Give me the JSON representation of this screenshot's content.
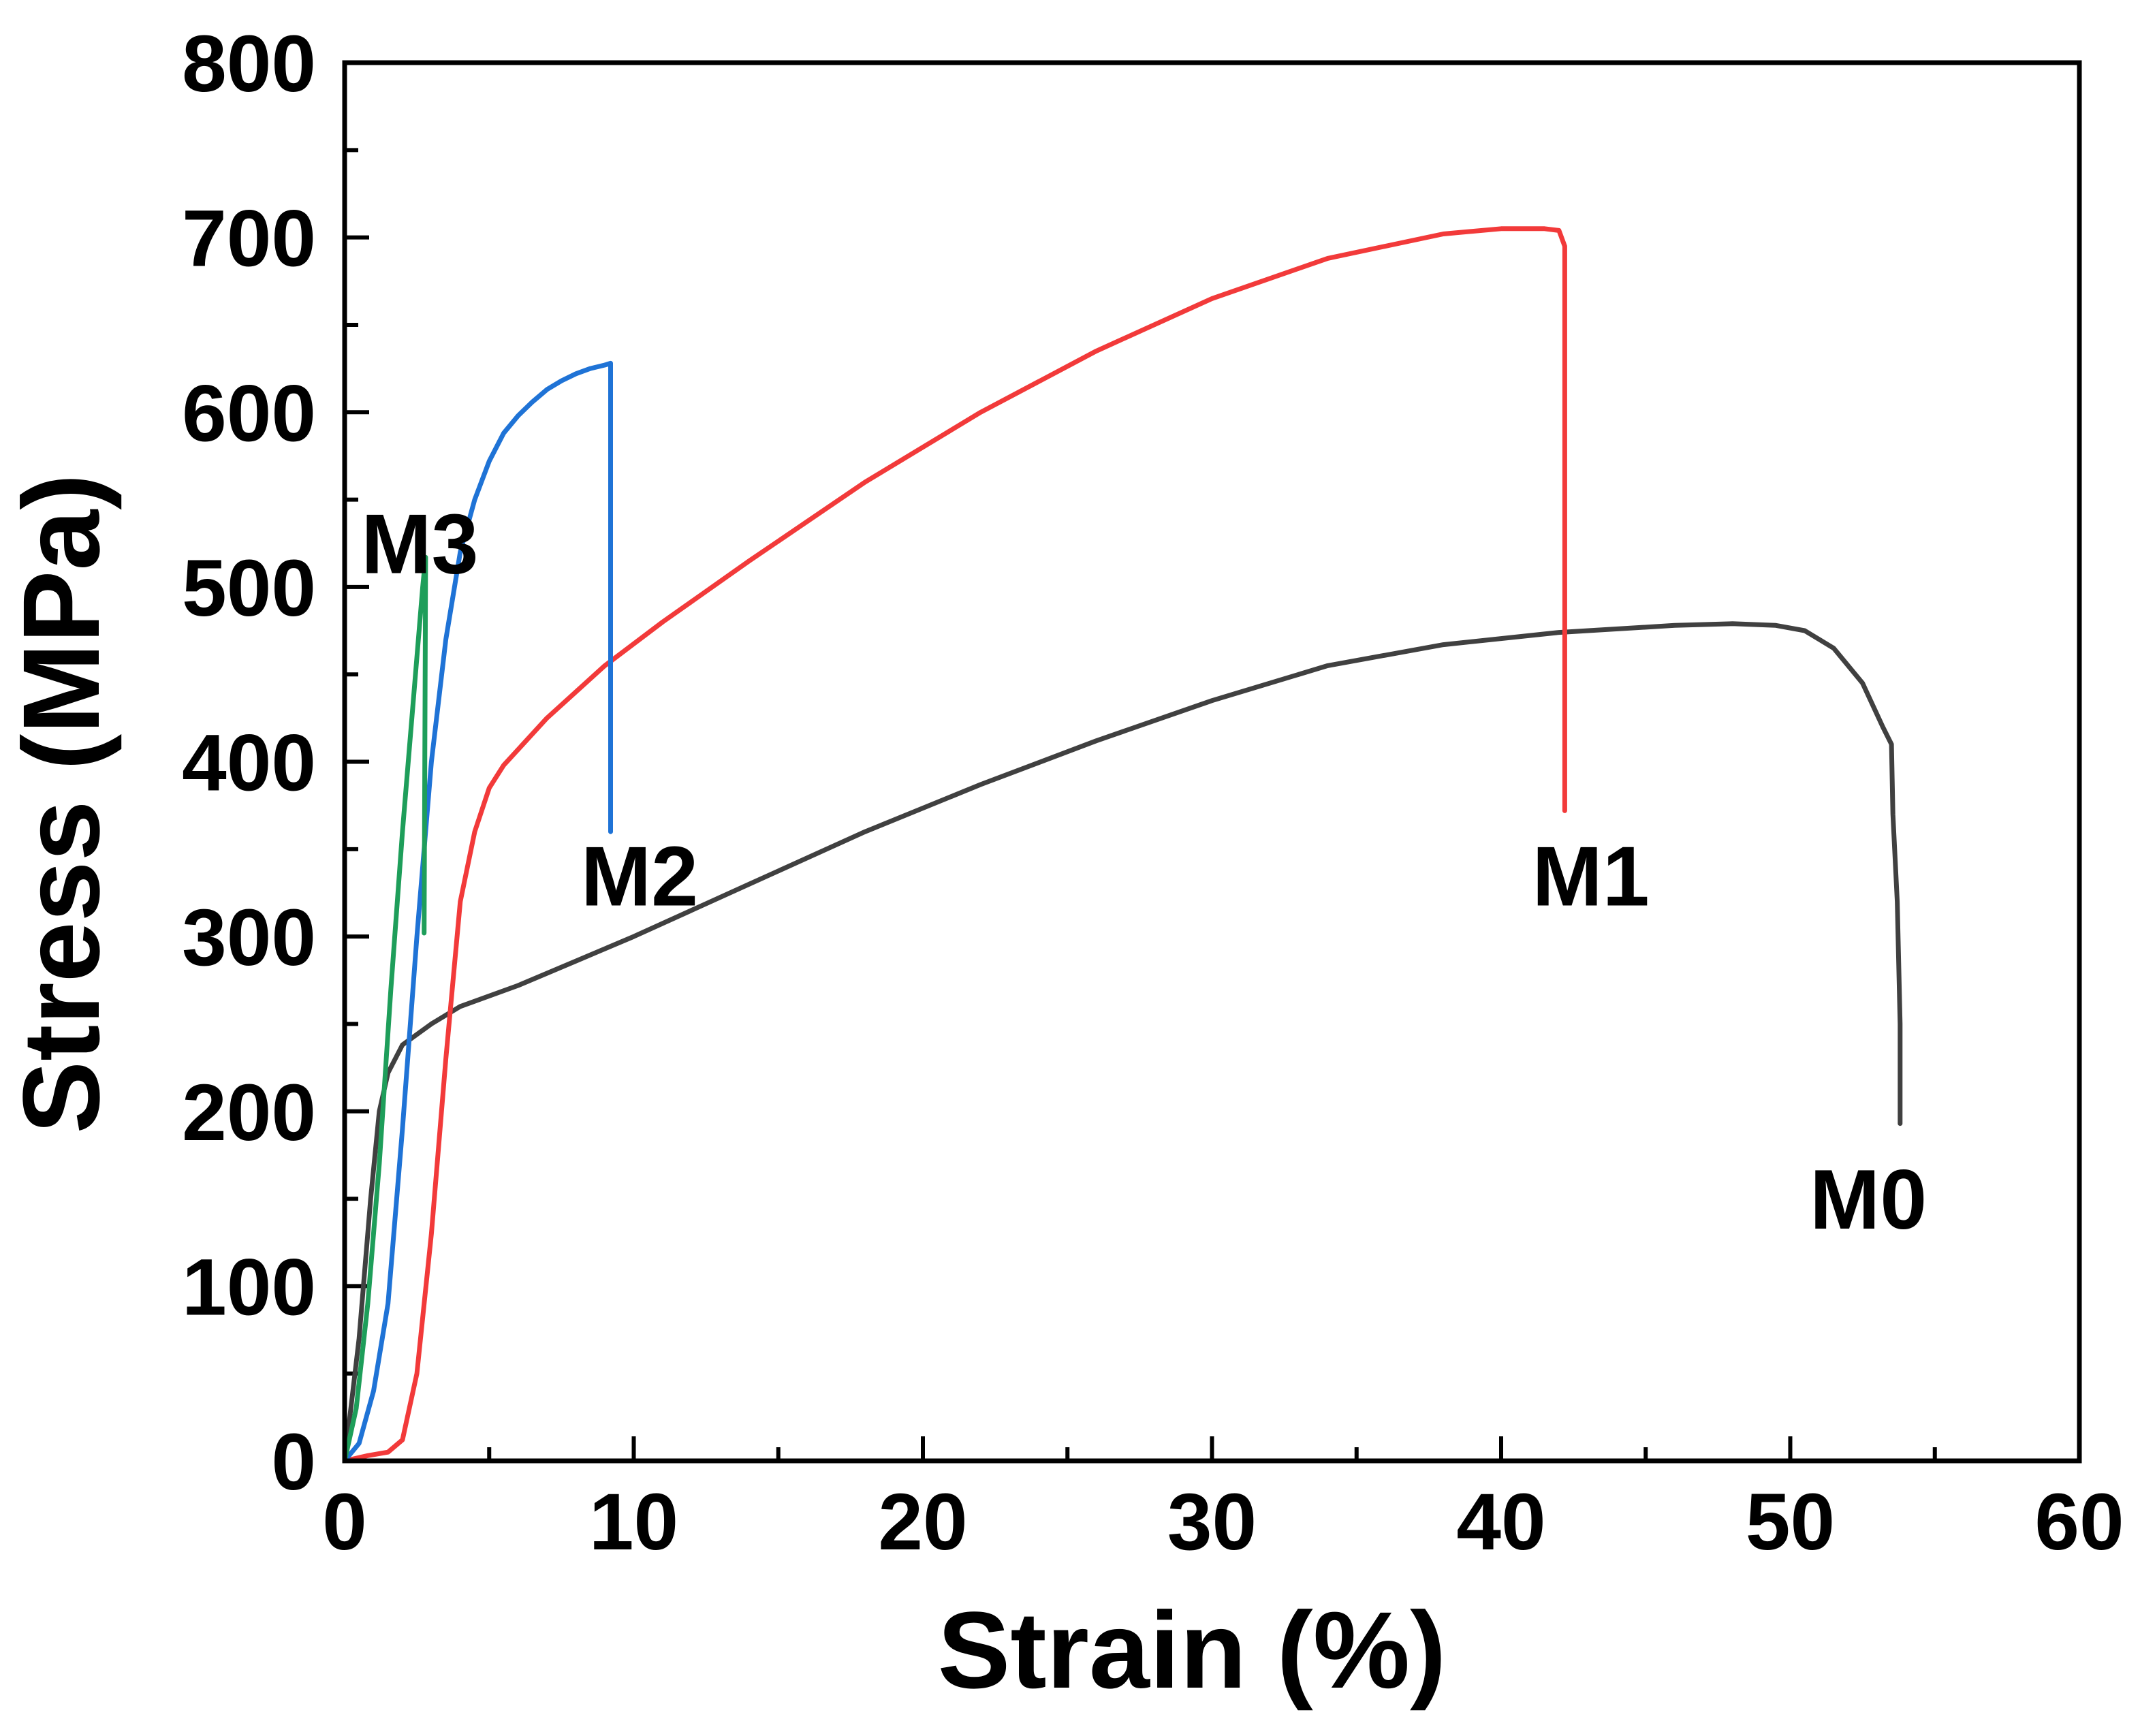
{
  "chart_data": {
    "type": "line",
    "title": "",
    "xlabel": "Strain (%)",
    "ylabel": "Stress (MPa)",
    "xlim": [
      0,
      60
    ],
    "ylim": [
      0,
      800
    ],
    "x_major_ticks": [
      0,
      10,
      20,
      30,
      40,
      50,
      60
    ],
    "x_tick_labels": [
      "0",
      "10",
      "20",
      "30",
      "40",
      "50",
      "60"
    ],
    "y_major_ticks": [
      0,
      100,
      200,
      300,
      400,
      500,
      600,
      700,
      800
    ],
    "y_tick_labels": [
      "0",
      "100",
      "200",
      "300",
      "400",
      "500",
      "600",
      "700",
      "800"
    ],
    "grid": false,
    "legend": "none",
    "series": [
      {
        "name": "M0",
        "color": "#404040",
        "label": "M0",
        "label_anchor": [
          52.7,
          150
        ],
        "x": [
          0,
          0.5,
          0.9,
          1.2,
          1.5,
          2.0,
          3.0,
          4.0,
          6.0,
          8.0,
          10,
          14,
          18,
          22,
          26,
          30,
          34,
          38,
          42,
          46,
          48,
          49.5,
          50.5,
          51.5,
          52.5,
          53.2,
          53.5,
          53.55,
          53.7,
          53.8,
          53.8
        ],
        "y": [
          0,
          70,
          150,
          200,
          222,
          238,
          250,
          260,
          272,
          286,
          300,
          330,
          360,
          387,
          412,
          435,
          455,
          467,
          474,
          478,
          479,
          478,
          475,
          465,
          445,
          420,
          410,
          370,
          320,
          250,
          193
        ]
      },
      {
        "name": "M1",
        "color": "#f23a3a",
        "label": "M1",
        "label_anchor": [
          43.1,
          335
        ],
        "x": [
          0,
          0.8,
          1.5,
          2.0,
          2.5,
          3.0,
          3.5,
          4.0,
          4.5,
          5.0,
          5.5,
          7.0,
          9.0,
          11,
          14,
          18,
          22,
          26,
          30,
          34,
          38,
          40,
          41.5,
          42.0,
          42.2,
          42.2,
          42.2
        ],
        "y": [
          0,
          3,
          5,
          12,
          50,
          130,
          230,
          320,
          360,
          385,
          398,
          425,
          455,
          480,
          515,
          560,
          600,
          635,
          665,
          688,
          702,
          705,
          705,
          704,
          695,
          550,
          372
        ]
      },
      {
        "name": "M2",
        "color": "#1f73d6",
        "label": "M2",
        "label_anchor": [
          10.2,
          335
        ],
        "x": [
          0,
          0.5,
          1.0,
          1.5,
          2.0,
          2.5,
          3.0,
          3.5,
          4.0,
          4.5,
          5.0,
          5.5,
          6.0,
          6.5,
          7.0,
          7.5,
          8.0,
          8.5,
          9.0,
          9.2,
          9.2,
          9.2
        ],
        "y": [
          0,
          10,
          40,
          90,
          190,
          300,
          400,
          470,
          520,
          550,
          572,
          588,
          598,
          606,
          613,
          618,
          622,
          625,
          627,
          628,
          500,
          360
        ]
      },
      {
        "name": "M3",
        "color": "#1e9e5a",
        "label": "M3",
        "label_anchor": [
          2.6,
          525
        ],
        "x": [
          0,
          0.4,
          0.8,
          1.2,
          1.6,
          2.0,
          2.4,
          2.7,
          2.8,
          2.75
        ],
        "y": [
          0,
          30,
          90,
          170,
          270,
          360,
          440,
          500,
          517,
          302
        ]
      }
    ]
  }
}
